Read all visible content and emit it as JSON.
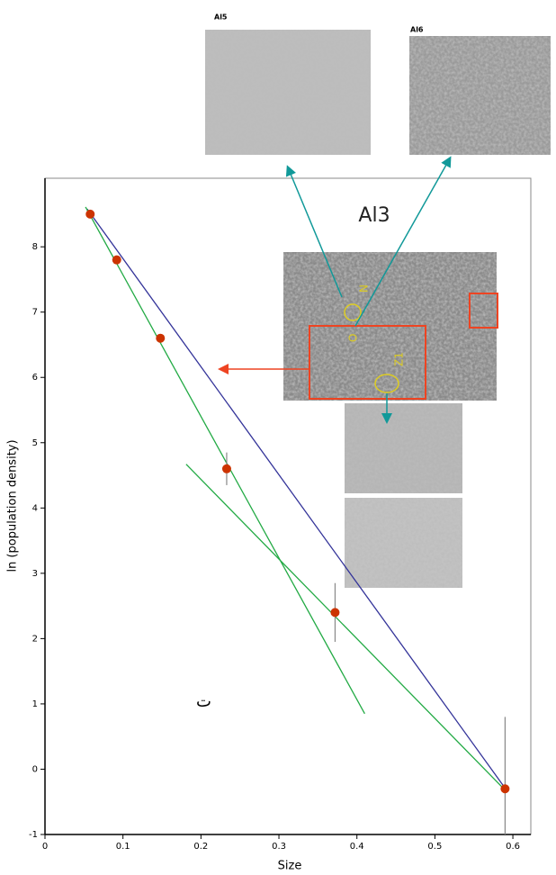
{
  "chart_data": {
    "type": "scatter",
    "x_label": "Size",
    "y_label": "ln (population density)",
    "xlim": [
      0,
      0.623
    ],
    "xticks": [
      0,
      0.1,
      0.2,
      0.3,
      0.4,
      0.5,
      0.6
    ],
    "ylim": [
      -1,
      9.05
    ],
    "yticks": [
      -1,
      0,
      1,
      2,
      3,
      4,
      5,
      6,
      7,
      8
    ],
    "series": [
      {
        "mode": "markers",
        "color": "#cc3300",
        "x": [
          0.058,
          0.092,
          0.148,
          0.233,
          0.372,
          0.59
        ],
        "values": [
          8.5,
          7.8,
          6.6,
          4.6,
          2.4,
          -0.3
        ],
        "errors": [
          null,
          null,
          null,
          0.25,
          0.45,
          1.1
        ]
      },
      {
        "mode": "line",
        "color": "#333399",
        "x": [
          0.054,
          0.59
        ],
        "values": [
          8.58,
          -0.29
        ]
      },
      {
        "mode": "line",
        "color": "#22aa44",
        "x": [
          0.052,
          0.41
        ],
        "values": [
          8.61,
          0.85
        ]
      },
      {
        "mode": "line",
        "color": "#22aa44",
        "x": [
          0.181,
          0.59
        ],
        "values": [
          4.67,
          -0.32
        ]
      }
    ],
    "annotations": {
      "main_image": "Al3",
      "left_thumb": "Al5",
      "right_thumb": "Al6",
      "mark": "ت",
      "ring_n": "N",
      "ring_o": "O",
      "ring_z": "Z1"
    }
  }
}
